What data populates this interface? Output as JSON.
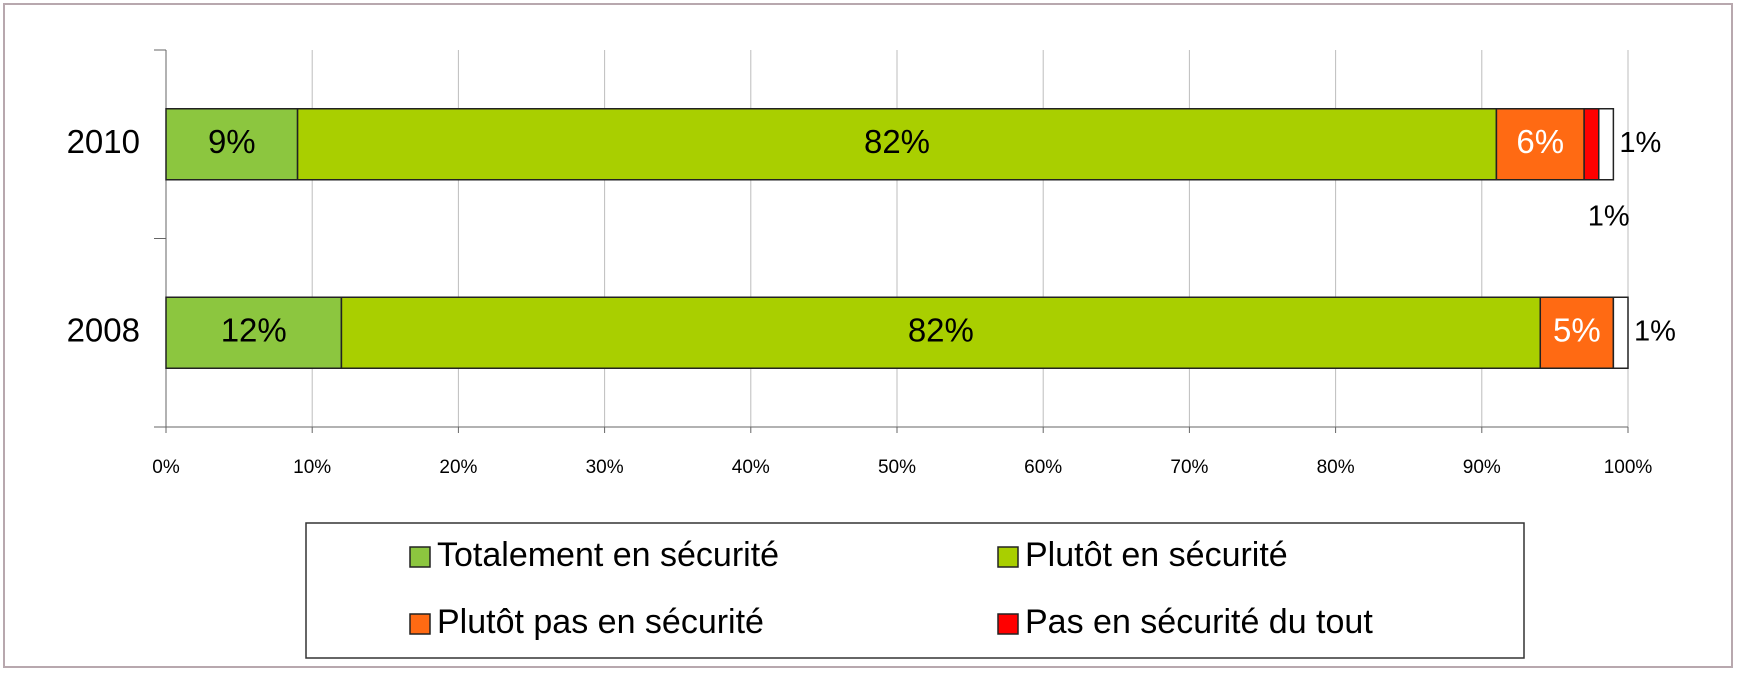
{
  "chart_data": {
    "type": "bar",
    "orientation": "horizontal",
    "stacked": true,
    "categories": [
      "2010",
      "2008"
    ],
    "series": [
      {
        "name": "Totalement en sécurité",
        "color": "#8cc63f",
        "values": [
          9,
          12
        ],
        "value_labels": [
          "9%",
          "12%"
        ]
      },
      {
        "name": "Plutôt en sécurité",
        "color": "#a9cf00",
        "values": [
          82,
          82
        ],
        "value_labels": [
          "82%",
          "82%"
        ]
      },
      {
        "name": "Plutôt pas en sécurité",
        "color": "#ff6a13",
        "values": [
          6,
          5
        ],
        "value_labels": [
          "6%",
          "5%"
        ]
      },
      {
        "name": "Pas en sécurité du tout",
        "color": "#ff0000",
        "values": [
          1,
          null
        ],
        "value_labels": [
          "1%",
          null
        ]
      },
      {
        "color": "#ffffff",
        "values": [
          1,
          1
        ],
        "value_labels": [
          "1%",
          "1%"
        ]
      }
    ],
    "xlim": [
      0,
      100
    ],
    "xticks": [
      {
        "value": 0,
        "label": "0%"
      },
      {
        "value": 10,
        "label": "10%"
      },
      {
        "value": 20,
        "label": "20%"
      },
      {
        "value": 30,
        "label": "30%"
      },
      {
        "value": 40,
        "label": "40%"
      },
      {
        "value": 50,
        "label": "50%"
      },
      {
        "value": 60,
        "label": "60%"
      },
      {
        "value": 70,
        "label": "70%"
      },
      {
        "value": 80,
        "label": "80%"
      },
      {
        "value": 90,
        "label": "90%"
      },
      {
        "value": 100,
        "label": "100%"
      }
    ],
    "grid": true,
    "legend": "bottom"
  }
}
